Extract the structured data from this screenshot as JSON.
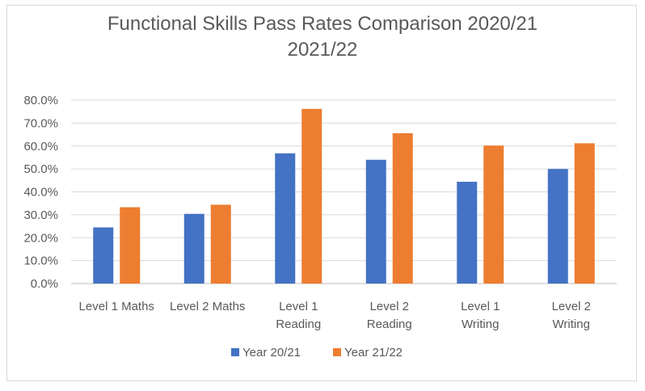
{
  "chart_data": {
    "type": "bar",
    "title_lines": [
      "Functional  Skills Pass Rates Comparison  2020/21",
      "2021/22"
    ],
    "categories": [
      [
        "Level 1 Maths"
      ],
      [
        "Level 2 Maths"
      ],
      [
        "Level 1",
        "Reading"
      ],
      [
        "Level 2",
        "Reading"
      ],
      [
        "Level 1",
        "Writing"
      ],
      [
        "Level 2",
        "Writing"
      ]
    ],
    "series": [
      {
        "name": "Year 20/21",
        "color": "#4472c4",
        "values": [
          24.5,
          30.4,
          56.8,
          54.0,
          44.4,
          50.0
        ]
      },
      {
        "name": "Year 21/22",
        "color": "#ed7d31",
        "values": [
          33.3,
          34.4,
          76.2,
          65.6,
          60.2,
          61.2
        ]
      }
    ],
    "y_ticks": [
      "0.0%",
      "10.0%",
      "20.0%",
      "30.0%",
      "40.0%",
      "50.0%",
      "60.0%",
      "70.0%",
      "80.0%"
    ],
    "ylim": [
      0,
      80
    ],
    "grid": true,
    "legend_position": "bottom"
  }
}
